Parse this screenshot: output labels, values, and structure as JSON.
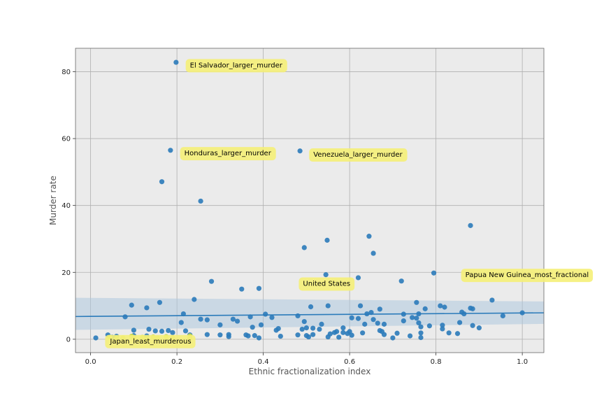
{
  "chart_data": {
    "type": "scatter",
    "title": "",
    "xlabel": "Ethnic fractionalization index",
    "ylabel": "Murder rate",
    "xlim": [
      -0.035,
      1.05
    ],
    "ylim": [
      -4,
      87
    ],
    "xticks": [
      "0.0",
      "0.2",
      "0.4",
      "0.6",
      "0.8",
      "1.0"
    ],
    "xtick_values": [
      0.0,
      0.2,
      0.4,
      0.6,
      0.8,
      1.0
    ],
    "yticks": [
      "0",
      "20",
      "40",
      "60",
      "80"
    ],
    "ytick_values": [
      0,
      20,
      40,
      60,
      80
    ],
    "grid": true,
    "colors": {
      "background": "#ebebeb",
      "grid": "#b0b0b0",
      "point": "#2b7bba",
      "highlight_point": "#c7d84a",
      "regression_line": "#2b7bba",
      "confidence_band": "#a9c6de",
      "annotation_box": "#f5ef78"
    },
    "regression": {
      "x": [
        -0.035,
        1.05
      ],
      "y": [
        6.8,
        7.9
      ],
      "band_lower": [
        2.8,
        4.6
      ],
      "band_upper": [
        12.4,
        11.3
      ]
    },
    "points": [
      [
        0.012,
        0.4
      ],
      [
        0.04,
        1.3
      ],
      [
        0.05,
        0.6
      ],
      [
        0.06,
        0.9
      ],
      [
        0.08,
        6.7
      ],
      [
        0.095,
        10.2
      ],
      [
        0.1,
        2.7
      ],
      [
        0.1,
        1.1
      ],
      [
        0.13,
        9.4
      ],
      [
        0.135,
        3.0
      ],
      [
        0.13,
        1.0
      ],
      [
        0.15,
        2.5
      ],
      [
        0.16,
        11.0
      ],
      [
        0.165,
        2.4
      ],
      [
        0.165,
        47.1
      ],
      [
        0.18,
        2.6
      ],
      [
        0.185,
        56.5
      ],
      [
        0.19,
        2.0
      ],
      [
        0.198,
        82.8
      ],
      [
        0.21,
        5.0
      ],
      [
        0.215,
        7.6
      ],
      [
        0.22,
        2.5
      ],
      [
        0.23,
        1.3
      ],
      [
        0.24,
        11.9
      ],
      [
        0.255,
        41.3
      ],
      [
        0.255,
        6.0
      ],
      [
        0.27,
        1.4
      ],
      [
        0.27,
        5.8
      ],
      [
        0.28,
        17.3
      ],
      [
        0.3,
        1.3
      ],
      [
        0.3,
        4.3
      ],
      [
        0.32,
        1.4
      ],
      [
        0.32,
        0.8
      ],
      [
        0.33,
        6.0
      ],
      [
        0.34,
        5.4
      ],
      [
        0.35,
        15.0
      ],
      [
        0.36,
        1.3
      ],
      [
        0.365,
        1.0
      ],
      [
        0.37,
        6.7
      ],
      [
        0.375,
        3.6
      ],
      [
        0.38,
        1.1
      ],
      [
        0.39,
        15.2
      ],
      [
        0.39,
        0.4
      ],
      [
        0.395,
        4.3
      ],
      [
        0.405,
        7.5
      ],
      [
        0.42,
        6.5
      ],
      [
        0.43,
        2.7
      ],
      [
        0.435,
        3.2
      ],
      [
        0.44,
        0.9
      ],
      [
        0.48,
        7.0
      ],
      [
        0.48,
        1.3
      ],
      [
        0.485,
        56.3
      ],
      [
        0.49,
        3.0
      ],
      [
        0.495,
        5.3
      ],
      [
        0.495,
        27.4
      ],
      [
        0.5,
        3.4
      ],
      [
        0.5,
        1.1
      ],
      [
        0.505,
        0.7
      ],
      [
        0.51,
        9.7
      ],
      [
        0.515,
        1.4
      ],
      [
        0.515,
        3.3
      ],
      [
        0.53,
        3.0
      ],
      [
        0.535,
        4.5
      ],
      [
        0.545,
        19.3
      ],
      [
        0.548,
        29.6
      ],
      [
        0.55,
        10.0
      ],
      [
        0.55,
        0.7
      ],
      [
        0.555,
        1.6
      ],
      [
        0.565,
        2.0
      ],
      [
        0.57,
        2.3
      ],
      [
        0.575,
        0.6
      ],
      [
        0.585,
        2.0
      ],
      [
        0.585,
        3.4
      ],
      [
        0.595,
        1.7
      ],
      [
        0.6,
        2.3
      ],
      [
        0.605,
        6.4
      ],
      [
        0.605,
        1.2
      ],
      [
        0.62,
        6.2
      ],
      [
        0.62,
        18.4
      ],
      [
        0.625,
        10.0
      ],
      [
        0.63,
        1.9
      ],
      [
        0.635,
        4.5
      ],
      [
        0.64,
        7.6
      ],
      [
        0.645,
        30.8
      ],
      [
        0.65,
        8.0
      ],
      [
        0.655,
        25.7
      ],
      [
        0.655,
        5.9
      ],
      [
        0.665,
        4.8
      ],
      [
        0.67,
        9.0
      ],
      [
        0.67,
        2.6
      ],
      [
        0.675,
        2.3
      ],
      [
        0.68,
        4.5
      ],
      [
        0.68,
        1.4
      ],
      [
        0.7,
        0.4
      ],
      [
        0.71,
        1.8
      ],
      [
        0.72,
        17.4
      ],
      [
        0.725,
        5.5
      ],
      [
        0.725,
        7.5
      ],
      [
        0.74,
        1.0
      ],
      [
        0.745,
        6.5
      ],
      [
        0.755,
        11.0
      ],
      [
        0.755,
        6.3
      ],
      [
        0.76,
        4.9
      ],
      [
        0.76,
        7.6
      ],
      [
        0.765,
        3.7
      ],
      [
        0.765,
        1.9
      ],
      [
        0.765,
        0.5
      ],
      [
        0.775,
        9.1
      ],
      [
        0.785,
        4.0
      ],
      [
        0.795,
        19.8
      ],
      [
        0.81,
        10.0
      ],
      [
        0.815,
        4.2
      ],
      [
        0.815,
        3.1
      ],
      [
        0.82,
        9.6
      ],
      [
        0.83,
        1.9
      ],
      [
        0.85,
        1.7
      ],
      [
        0.855,
        5.0
      ],
      [
        0.86,
        8.1
      ],
      [
        0.865,
        7.6
      ],
      [
        0.88,
        9.3
      ],
      [
        0.88,
        34.0
      ],
      [
        0.885,
        9.1
      ],
      [
        0.885,
        4.1
      ],
      [
        0.9,
        3.4
      ],
      [
        0.93,
        11.7
      ],
      [
        0.955,
        7.0
      ],
      [
        1.0,
        7.9
      ]
    ],
    "highlight_points": [
      [
        0.045,
        0.6
      ],
      [
        0.06,
        0.3
      ],
      [
        0.075,
        0.4
      ],
      [
        0.095,
        0.9
      ],
      [
        0.1,
        0.4
      ],
      [
        0.12,
        0.6
      ],
      [
        0.13,
        0.2
      ],
      [
        0.145,
        0.7
      ],
      [
        0.155,
        0.4
      ],
      [
        0.175,
        0.8
      ],
      [
        0.19,
        0.5
      ],
      [
        0.23,
        0.4
      ],
      [
        0.23,
        1.0
      ]
    ],
    "annotations": [
      {
        "text": "El Salvador_larger_murder",
        "x": 0.23,
        "y": 82
      },
      {
        "text": "Honduras_larger_murder",
        "x": 0.217,
        "y": 55.7
      },
      {
        "text": "Venezuela_larger_murder",
        "x": 0.516,
        "y": 55.3
      },
      {
        "text": "Papua New Guinea_most_fractional",
        "x": 0.868,
        "y": 19.3
      },
      {
        "text": "United States",
        "x": 0.492,
        "y": 16.7
      },
      {
        "text": "Japan_least_murderous",
        "x": 0.045,
        "y": -0.5
      }
    ]
  }
}
